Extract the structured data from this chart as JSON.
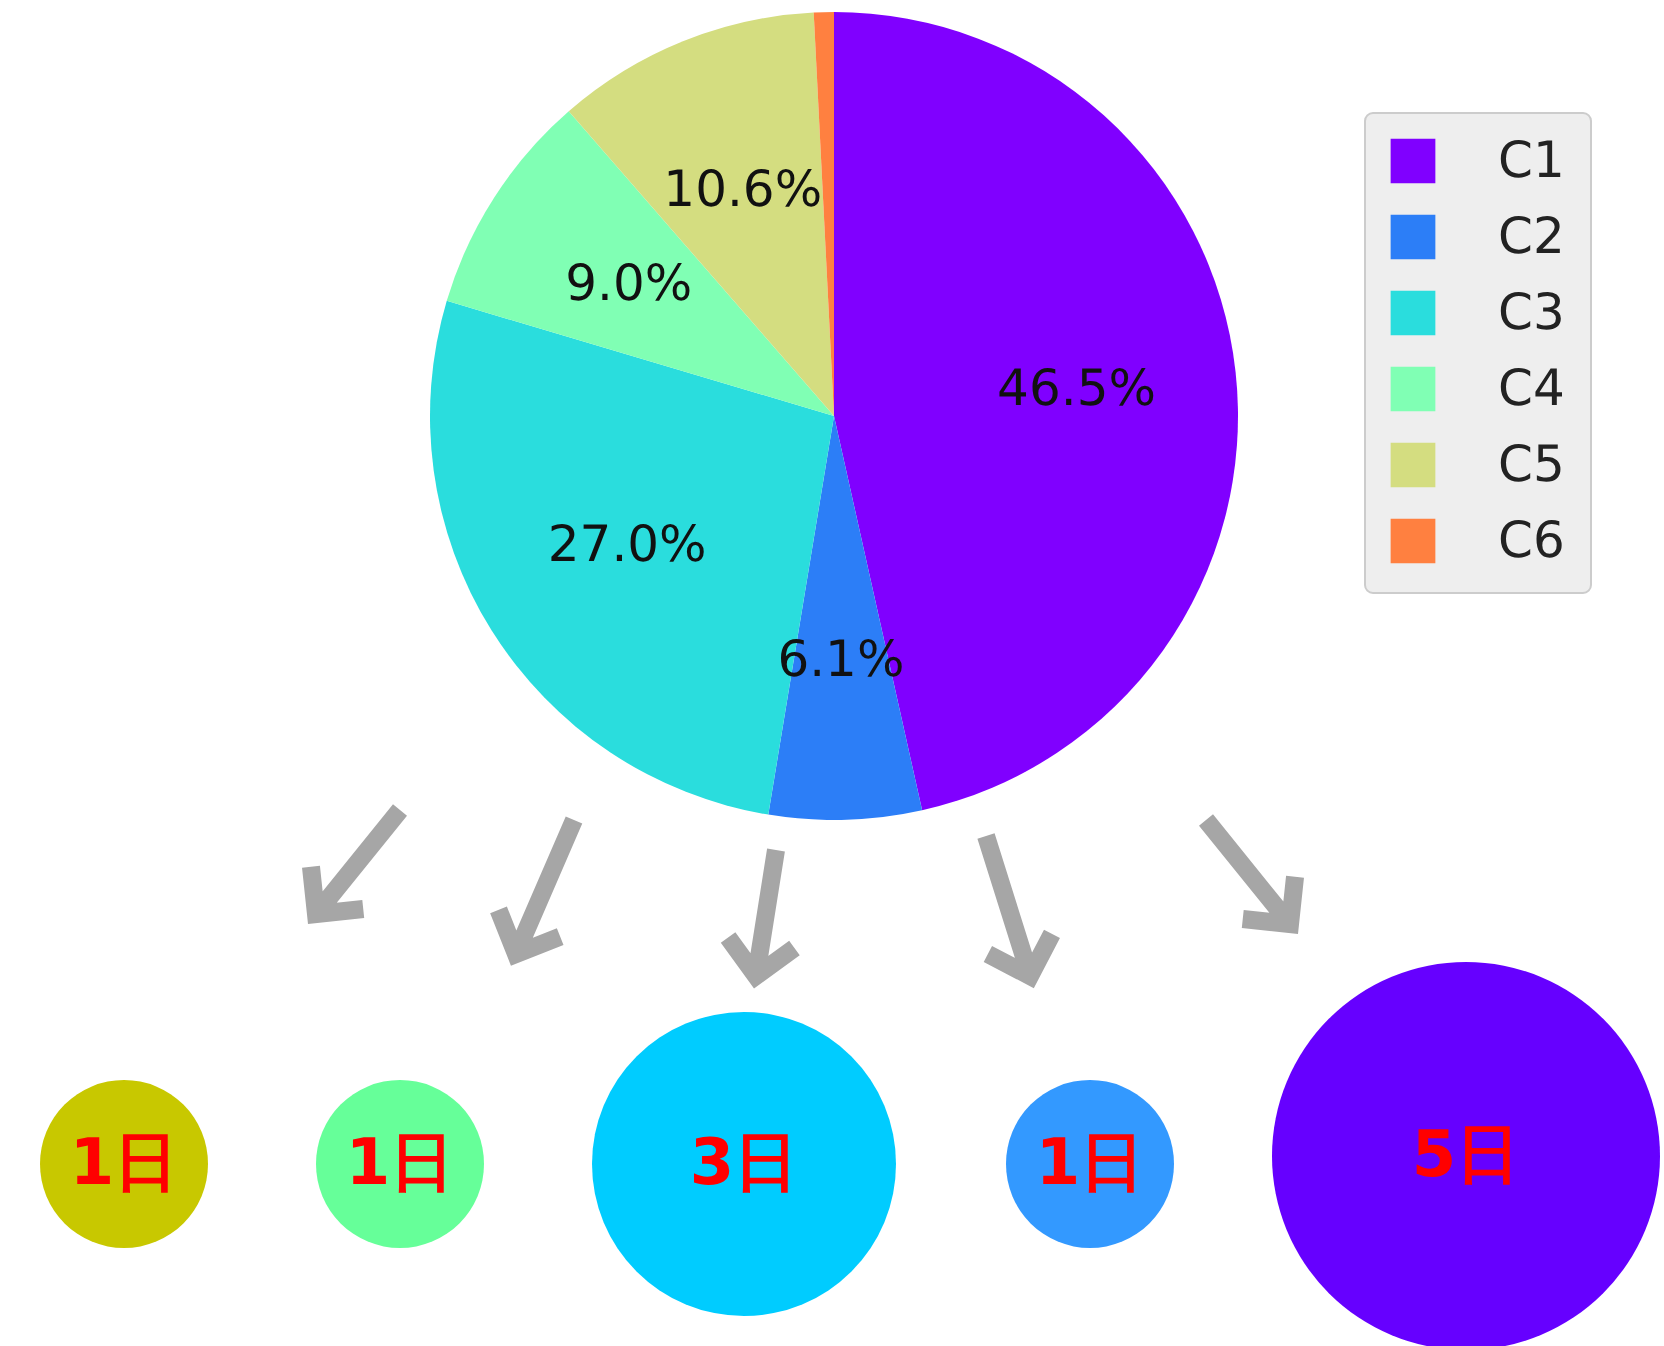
{
  "chart_data": {
    "type": "pie",
    "categories": [
      "C1",
      "C2",
      "C3",
      "C4",
      "C5",
      "C6"
    ],
    "values": [
      46.5,
      6.1,
      27.0,
      9.0,
      10.6,
      0.8
    ],
    "colors": [
      "#8000ff",
      "#2c7ef7",
      "#2adddd",
      "#80ffb4",
      "#d4dd80",
      "#ff8040"
    ],
    "value_labels": [
      "46.5%",
      "6.1%",
      "27.0%",
      "9.0%",
      "10.6%",
      null
    ],
    "legend": "right",
    "annotations": [
      "1日",
      "1日",
      "3日",
      "1日",
      "5日"
    ]
  }
}
